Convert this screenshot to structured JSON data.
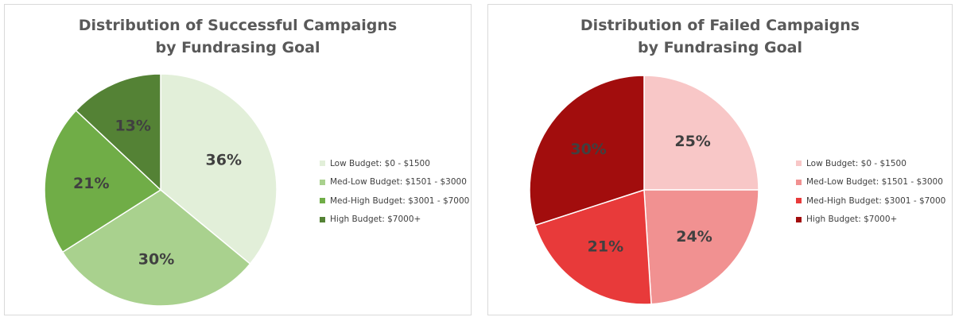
{
  "chart_data": [
    {
      "type": "pie",
      "title_lines": [
        "Distribution of Successful Campaigns",
        "by Fundrasing Goal"
      ],
      "categories": [
        "Low Budget: $0 - $1500",
        "Med-Low Budget: $1501 - $3000",
        "Med-High Budget: $3001 - $7000",
        "High Budget: $7000+"
      ],
      "values": [
        36,
        30,
        21,
        13
      ],
      "data_labels": [
        "36%",
        "30%",
        "21%",
        "13%"
      ],
      "colors": [
        "#e2efd9",
        "#a9d18e",
        "#70ad47",
        "#548235"
      ],
      "stroke": "#ffffff",
      "label_color": "#404040",
      "legend_position": "right"
    },
    {
      "type": "pie",
      "title_lines": [
        "Distribution of Failed Campaigns",
        "by Fundrasing Goal"
      ],
      "categories": [
        "Low Budget: $0 - $1500",
        "Med-Low Budget: $1501 - $3000",
        "Med-High Budget: $3001 - $7000",
        "High Budget: $7000+"
      ],
      "values": [
        25,
        24,
        21,
        30
      ],
      "data_labels": [
        "25%",
        "24%",
        "21%",
        "30%"
      ],
      "colors": [
        "#f8c7c7",
        "#f19191",
        "#e83a3a",
        "#a20d0d"
      ],
      "stroke": "#ffffff",
      "label_color": "#404040",
      "legend_position": "right"
    }
  ]
}
